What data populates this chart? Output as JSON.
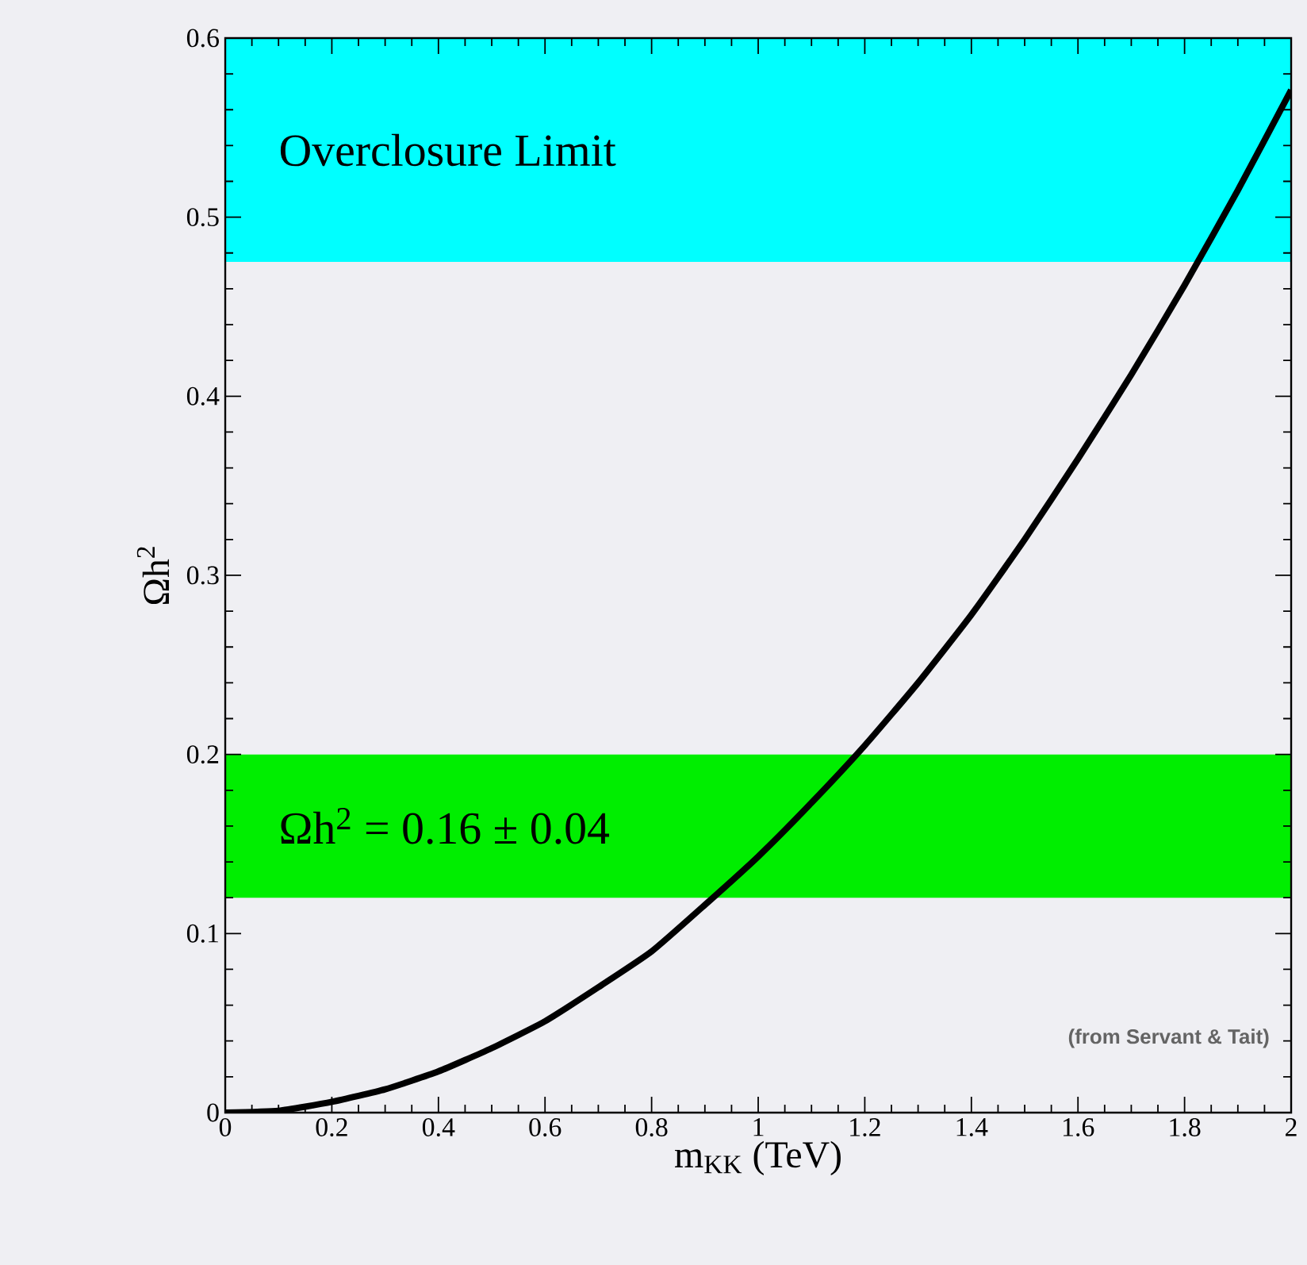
{
  "chart_data": {
    "type": "line",
    "xlabel": "m$_{KK}$ (TeV)",
    "ylabel": "Ωh$^{2}$",
    "xlim": [
      0,
      2
    ],
    "ylim": [
      0,
      0.6
    ],
    "xticks": [
      0,
      0.2,
      0.4,
      0.6,
      0.8,
      1,
      1.2,
      1.4,
      1.6,
      1.8,
      2
    ],
    "yticks": [
      0,
      0.1,
      0.2,
      0.3,
      0.4,
      0.5,
      0.6
    ],
    "tick_labels": true,
    "series": [
      {
        "color": "#000000",
        "x": [
          0,
          0.1,
          0.2,
          0.3,
          0.4,
          0.5,
          0.6,
          0.7,
          0.8,
          0.9,
          1.0,
          1.1,
          1.2,
          1.3,
          1.4,
          1.5,
          1.6,
          1.7,
          1.8,
          1.9,
          2.0
        ],
        "values": [
          0,
          0.001,
          0.006,
          0.013,
          0.023,
          0.036,
          0.051,
          0.07,
          0.09,
          0.116,
          0.143,
          0.173,
          0.205,
          0.24,
          0.278,
          0.32,
          0.365,
          0.412,
          0.462,
          0.515,
          0.571
        ]
      }
    ],
    "bands": [
      {
        "axis": "y",
        "from": 0.475,
        "to": 0.6,
        "label": "Overclosure Limit",
        "color": "#00ffff"
      },
      {
        "axis": "y",
        "from": 0.12,
        "to": 0.2,
        "label": "Ωh$^{2}$ = 0.16 ± 0.04",
        "color": "#00ee00"
      }
    ],
    "annotations": [
      "(from Servant & Tait)"
    ]
  }
}
